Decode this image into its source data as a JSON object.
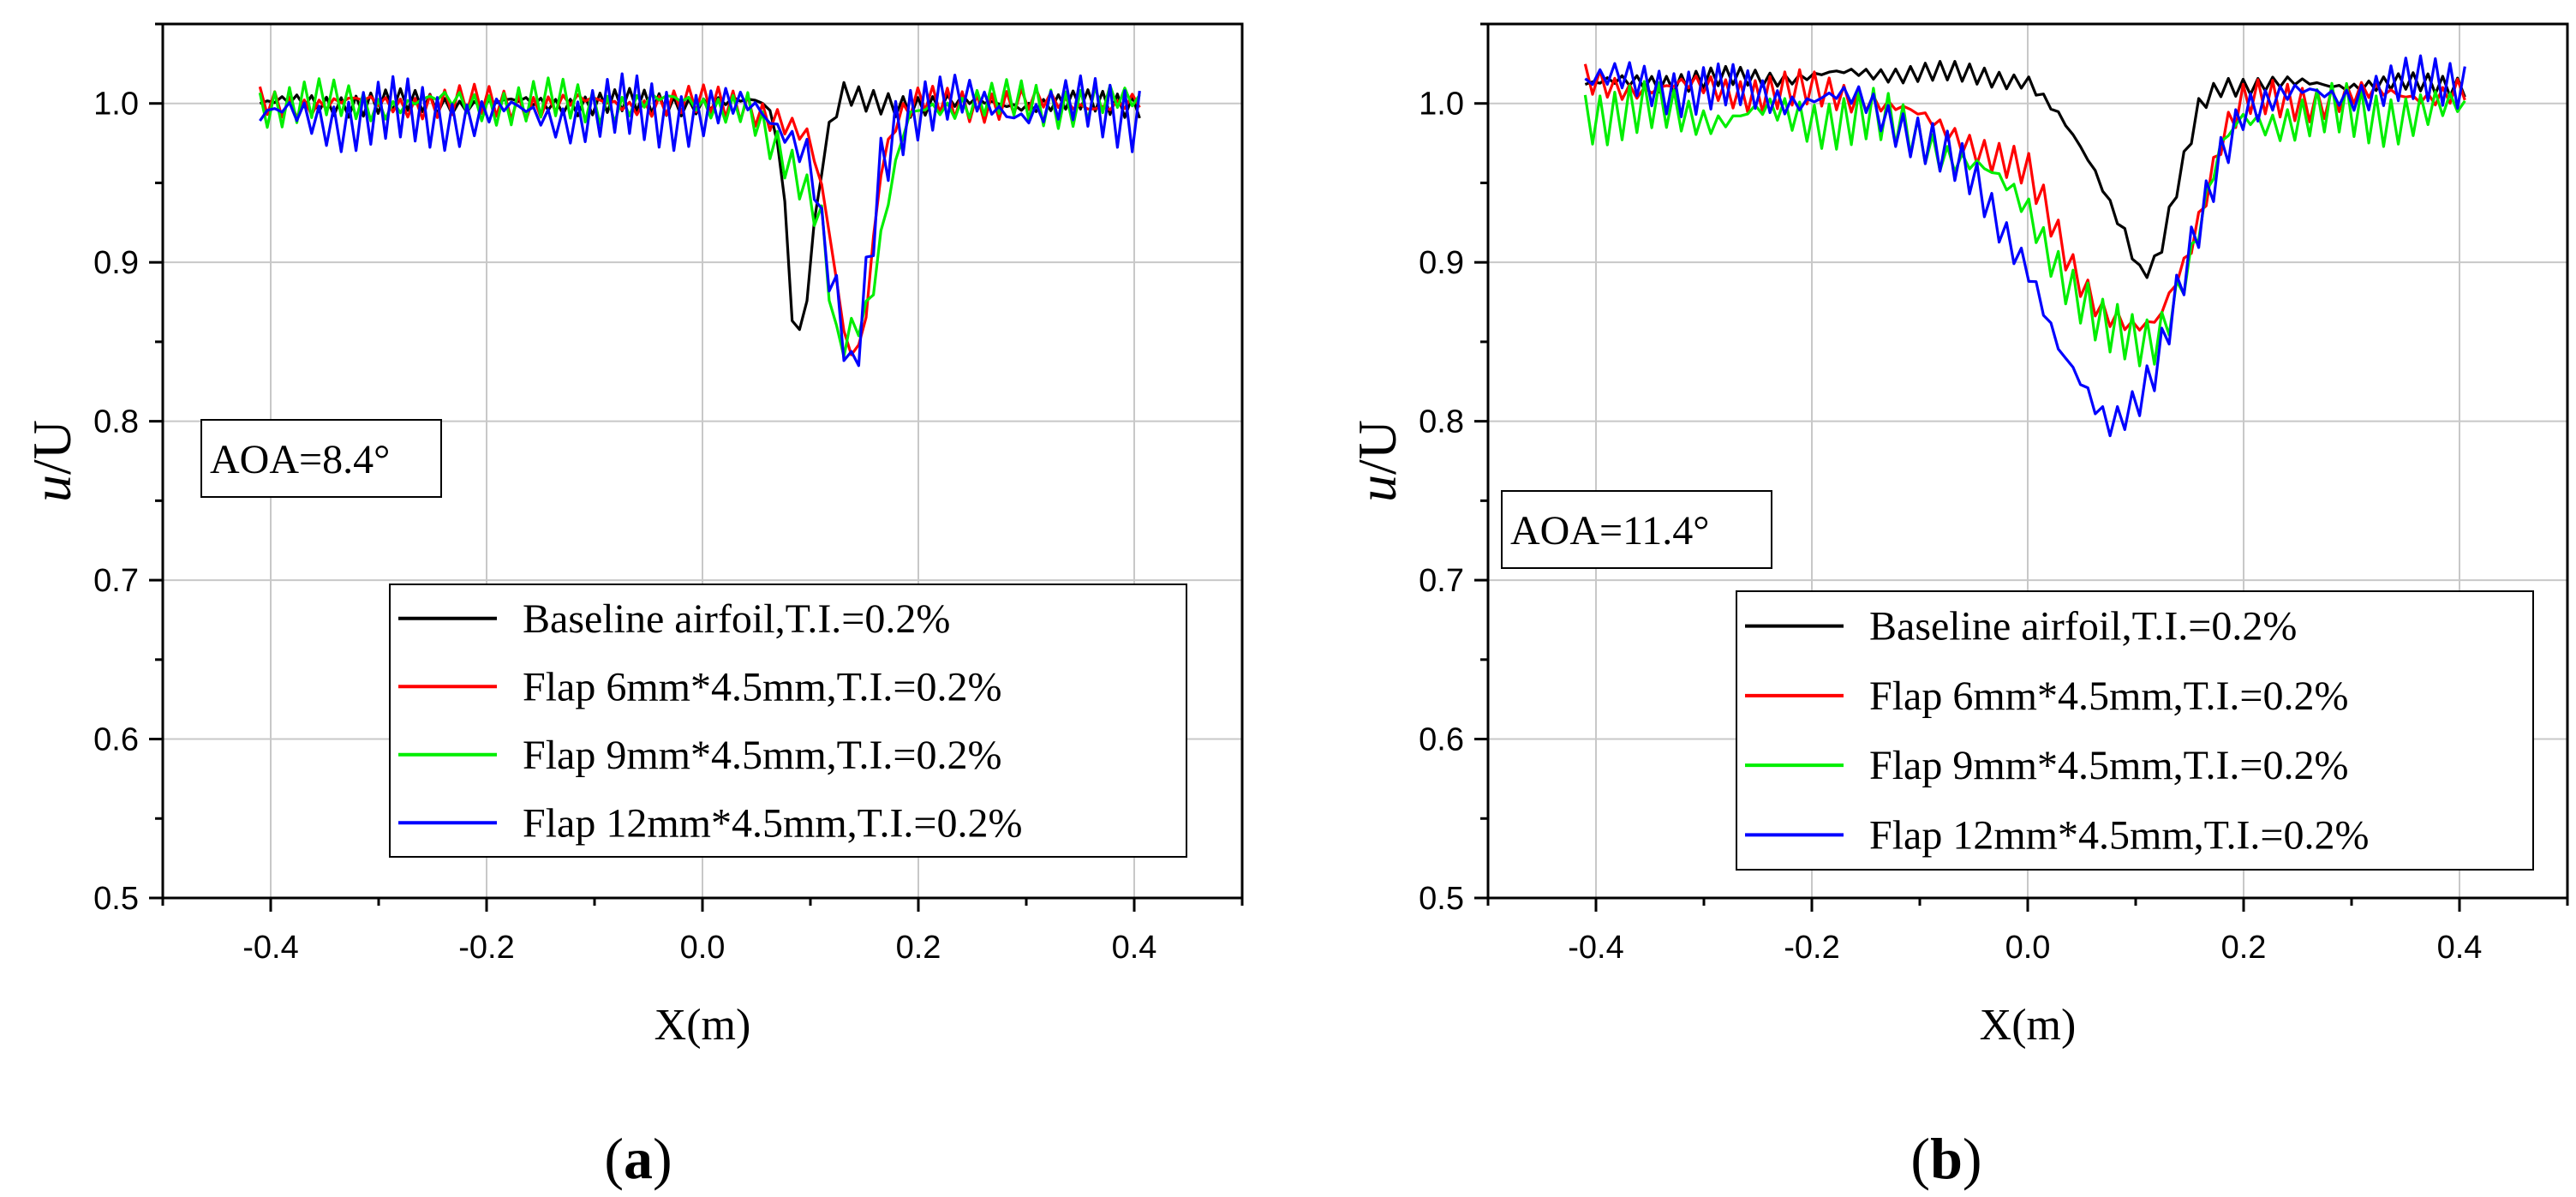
{
  "chart_data": [
    {
      "type": "line",
      "panel": "a",
      "panel_label": "a",
      "xlabel": "X(m)",
      "ylabel_italic": "u",
      "ylabel_rest": "/U",
      "xlim": [
        -0.5,
        0.5
      ],
      "ylim": [
        0.5,
        1.05
      ],
      "xticks": [
        -0.4,
        -0.2,
        0.0,
        0.2,
        0.4
      ],
      "xtick_labels": [
        "-0.4",
        "-0.2",
        "0.0",
        "0.2",
        "0.4"
      ],
      "yticks": [
        0.5,
        0.6,
        0.7,
        0.8,
        0.9,
        1.0
      ],
      "ytick_labels": [
        "0.5",
        "0.6",
        "0.7",
        "0.8",
        "0.9",
        "1.0"
      ],
      "grid": true,
      "annotation": "AOA=8.4°",
      "legend_position": "lower-right",
      "x_range": [
        -0.41,
        0.405
      ],
      "point_count": 120,
      "series": [
        {
          "name": "Baseline airfoil,T.I.=0.2%",
          "color": "#000000",
          "osc_amp": 0.007,
          "osc_phase": 0,
          "wake": [
            [
              -0.41,
              1.0
            ],
            [
              0.06,
              1.0
            ],
            [
              0.073,
              0.97
            ],
            [
              0.085,
              0.85
            ],
            [
              0.093,
              0.86
            ],
            [
              0.11,
              0.96
            ],
            [
              0.12,
              0.99
            ],
            [
              0.13,
              1.005
            ],
            [
              0.15,
              1.0
            ],
            [
              0.405,
              1.0
            ]
          ]
        },
        {
          "name": "Flap 6mm*4.5mm,T.I.=0.2%",
          "color": "#ff0000",
          "osc_amp": 0.009,
          "osc_phase": 1.2,
          "wake": [
            [
              -0.41,
              1.0
            ],
            [
              0.04,
              1.0
            ],
            [
              0.07,
              0.99
            ],
            [
              0.1,
              0.975
            ],
            [
              0.115,
              0.93
            ],
            [
              0.13,
              0.86
            ],
            [
              0.14,
              0.84
            ],
            [
              0.15,
              0.86
            ],
            [
              0.165,
              0.96
            ],
            [
              0.18,
              0.99
            ],
            [
              0.2,
              1.0
            ],
            [
              0.405,
              1.0
            ]
          ]
        },
        {
          "name": "Flap 9mm*4.5mm,T.I.=0.2%",
          "color": "#00ee00",
          "osc_amp": 0.012,
          "osc_phase": 2.1,
          "wake": [
            [
              -0.41,
              1.0
            ],
            [
              0.04,
              1.0
            ],
            [
              0.065,
              0.97
            ],
            [
              0.09,
              0.95
            ],
            [
              0.11,
              0.93
            ],
            [
              0.125,
              0.85
            ],
            [
              0.14,
              0.86
            ],
            [
              0.155,
              0.87
            ],
            [
              0.17,
              0.93
            ],
            [
              0.19,
              0.99
            ],
            [
              0.21,
              1.0
            ],
            [
              0.405,
              1.0
            ]
          ]
        },
        {
          "name": "Flap 12mm*4.5mm,T.I.=0.2%",
          "color": "#0000ff",
          "osc_amp": 0.019,
          "osc_phase": 3.3,
          "wake": [
            [
              -0.41,
              0.99
            ],
            [
              0.05,
              0.995
            ],
            [
              0.08,
              0.985
            ],
            [
              0.1,
              0.97
            ],
            [
              0.115,
              0.9
            ],
            [
              0.128,
              0.86
            ],
            [
              0.138,
              0.82
            ],
            [
              0.148,
              0.86
            ],
            [
              0.165,
              0.96
            ],
            [
              0.18,
              0.99
            ],
            [
              0.2,
              1.0
            ],
            [
              0.405,
              0.995
            ]
          ]
        }
      ]
    },
    {
      "type": "line",
      "panel": "b",
      "panel_label": "b",
      "xlabel": "X(m)",
      "ylabel_italic": "u",
      "ylabel_rest": "/U",
      "xlim": [
        -0.5,
        0.5
      ],
      "ylim": [
        0.5,
        1.05
      ],
      "xticks": [
        -0.4,
        -0.2,
        0.0,
        0.2,
        0.4
      ],
      "xtick_labels": [
        "-0.4",
        "-0.2",
        "0.0",
        "0.2",
        "0.4"
      ],
      "yticks": [
        0.5,
        0.6,
        0.7,
        0.8,
        0.9,
        1.0
      ],
      "ytick_labels": [
        "0.5",
        "0.6",
        "0.7",
        "0.8",
        "0.9",
        "1.0"
      ],
      "grid": true,
      "annotation": "AOA=11.4°",
      "legend_position": "lower-right",
      "x_range": [
        -0.41,
        0.405
      ],
      "point_count": 120,
      "series": [
        {
          "name": "Baseline airfoil,T.I.=0.2%",
          "color": "#000000",
          "osc_amp": 0.006,
          "osc_phase": 0,
          "wake": [
            [
              -0.41,
              1.012
            ],
            [
              -0.1,
              1.02
            ],
            [
              0.0,
              1.015
            ],
            [
              0.03,
              0.99
            ],
            [
              0.06,
              0.96
            ],
            [
              0.09,
              0.92
            ],
            [
              0.105,
              0.893
            ],
            [
              0.12,
              0.9
            ],
            [
              0.14,
              0.95
            ],
            [
              0.16,
              1.0
            ],
            [
              0.18,
              1.012
            ],
            [
              0.405,
              1.012
            ]
          ]
        },
        {
          "name": "Flap 6mm*4.5mm,T.I.=0.2%",
          "color": "#ff0000",
          "osc_amp": 0.011,
          "osc_phase": 1.0,
          "wake": [
            [
              -0.41,
              1.012
            ],
            [
              -0.15,
              1.005
            ],
            [
              -0.1,
              0.99
            ],
            [
              -0.05,
              0.975
            ],
            [
              0.0,
              0.955
            ],
            [
              0.04,
              0.9
            ],
            [
              0.07,
              0.87
            ],
            [
              0.1,
              0.855
            ],
            [
              0.12,
              0.86
            ],
            [
              0.15,
              0.91
            ],
            [
              0.18,
              0.98
            ],
            [
              0.2,
              1.0
            ],
            [
              0.405,
              1.008
            ]
          ]
        },
        {
          "name": "Flap 9mm*4.5mm,T.I.=0.2%",
          "color": "#00ee00",
          "osc_amp": 0.016,
          "osc_phase": 2.0,
          "wake": [
            [
              -0.41,
              0.995
            ],
            [
              -0.15,
              0.99
            ],
            [
              -0.1,
              0.98
            ],
            [
              -0.05,
              0.96
            ],
            [
              0.0,
              0.935
            ],
            [
              0.04,
              0.885
            ],
            [
              0.07,
              0.855
            ],
            [
              0.1,
              0.85
            ],
            [
              0.12,
              0.855
            ],
            [
              0.15,
              0.9
            ],
            [
              0.18,
              0.97
            ],
            [
              0.2,
              0.99
            ],
            [
              0.405,
              0.995
            ]
          ]
        },
        {
          "name": "Flap 12mm*4.5mm,T.I.=0.2%",
          "color": "#0000ff",
          "osc_amp": 0.014,
          "osc_phase": 3.0,
          "wake": [
            [
              -0.41,
              1.015
            ],
            [
              -0.15,
              1.0
            ],
            [
              -0.1,
              0.98
            ],
            [
              -0.05,
              0.95
            ],
            [
              0.0,
              0.9
            ],
            [
              0.03,
              0.84
            ],
            [
              0.06,
              0.81
            ],
            [
              0.075,
              0.8
            ],
            [
              0.1,
              0.815
            ],
            [
              0.12,
              0.835
            ],
            [
              0.15,
              0.9
            ],
            [
              0.18,
              0.97
            ],
            [
              0.2,
              1.0
            ],
            [
              0.405,
              1.015
            ]
          ]
        }
      ]
    }
  ]
}
